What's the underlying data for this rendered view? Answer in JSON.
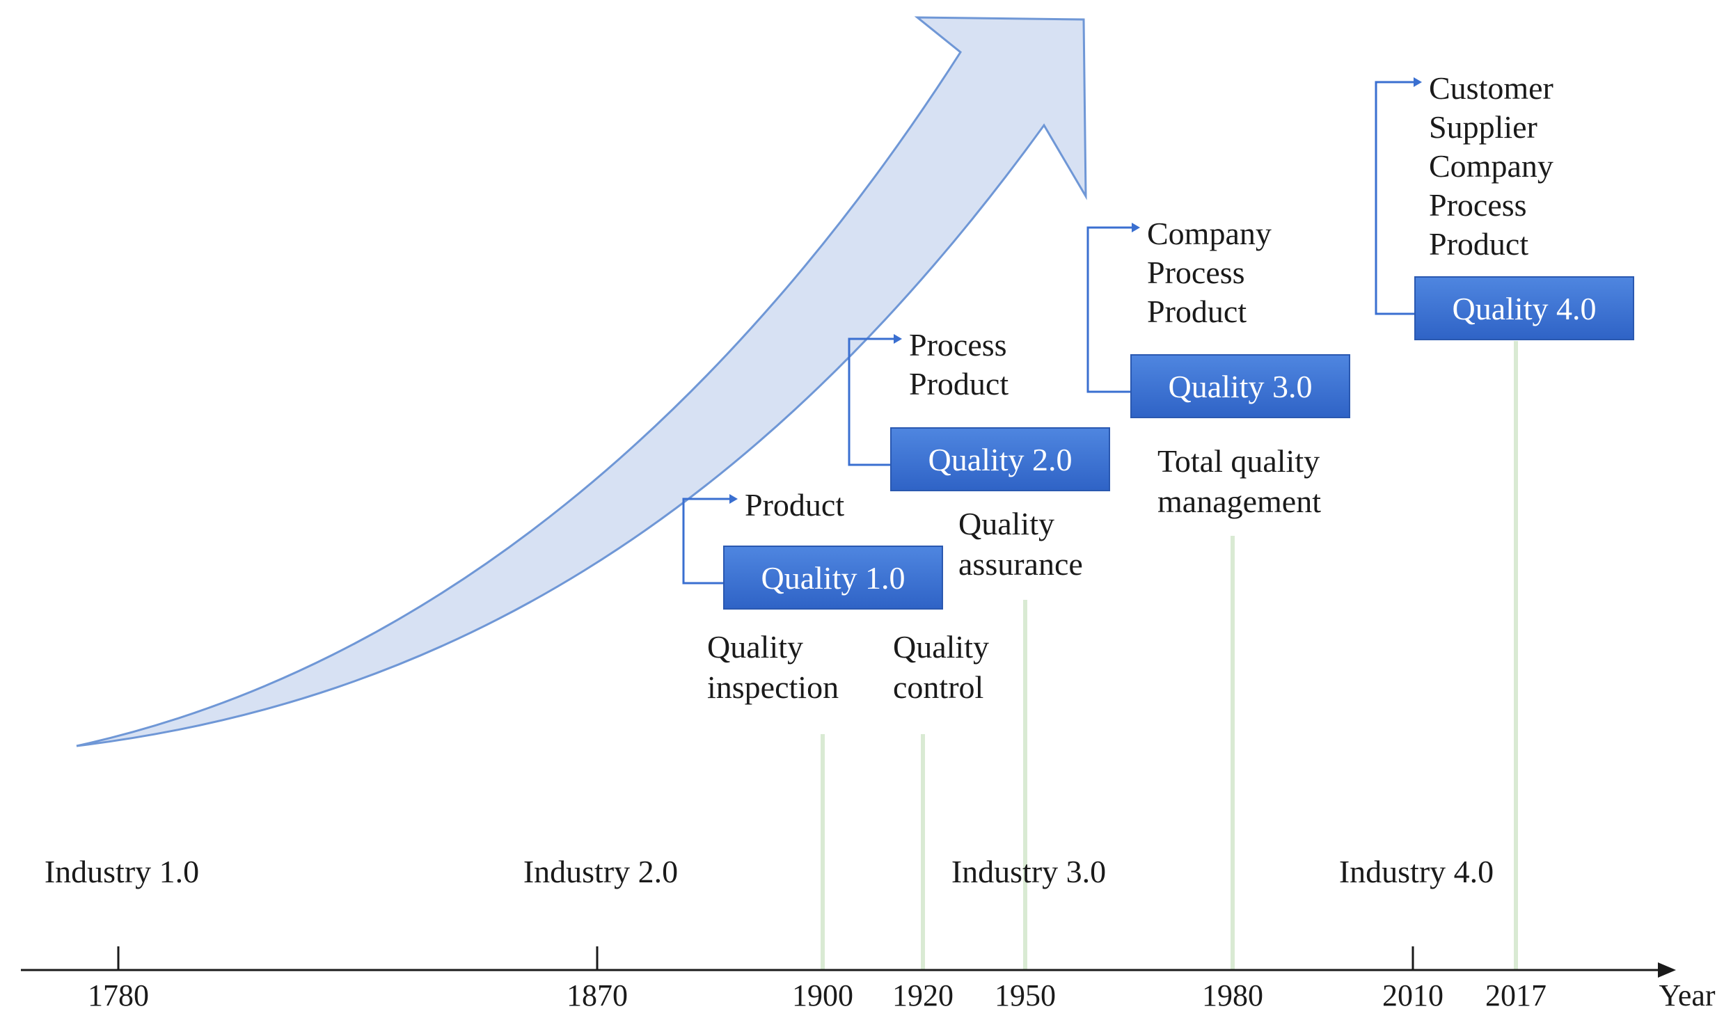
{
  "axis": {
    "label": "Year",
    "ticks": [
      "1780",
      "1870",
      "1900",
      "1920",
      "1950",
      "1980",
      "2010",
      "2017"
    ]
  },
  "industries": [
    {
      "label": "Industry 1.0",
      "year": "1780"
    },
    {
      "label": "Industry 2.0",
      "year": "1870"
    },
    {
      "label": "Industry 3.0",
      "year": "1950"
    },
    {
      "label": "Industry 4.0",
      "year": "2010"
    }
  ],
  "eras": [
    {
      "year": "1900",
      "lines": [
        "Quality",
        "inspection"
      ]
    },
    {
      "year": "1920",
      "lines": [
        "Quality",
        "control"
      ]
    },
    {
      "year": "1950",
      "lines": [
        "Quality",
        "assurance"
      ]
    },
    {
      "year": "1980",
      "lines": [
        "Total quality",
        "management"
      ]
    }
  ],
  "quality_boxes": [
    {
      "label": "Quality 1.0",
      "focus": [
        "Product"
      ]
    },
    {
      "label": "Quality 2.0",
      "focus": [
        "Process",
        "Product"
      ]
    },
    {
      "label": "Quality 3.0",
      "focus": [
        "Company",
        "Process",
        "Product"
      ]
    },
    {
      "label": "Quality 4.0",
      "focus": [
        "Customer",
        "Supplier",
        "Company",
        "Process",
        "Product"
      ]
    }
  ],
  "colors": {
    "box_fill": "#3a6fd0",
    "box_fill_light": "#4f86e0",
    "box_text": "#ffffff",
    "connector": "#3a6fd0",
    "era_line": "#d9ead3",
    "arrow_fill": "#d7e1f3",
    "arrow_stroke": "#6f97d6",
    "axis": "#1a1a1a",
    "text": "#1a1a1a"
  }
}
